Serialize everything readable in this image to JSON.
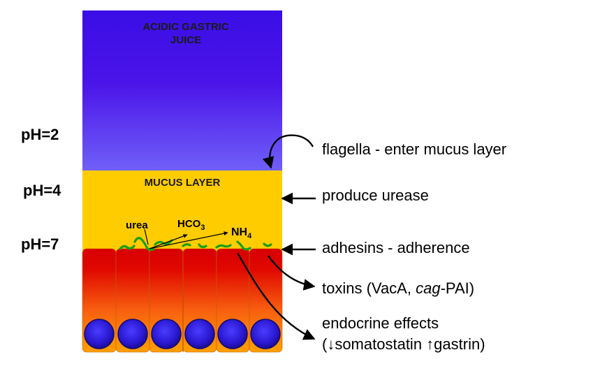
{
  "ph_labels": [
    "pH=2",
    "pH=4",
    "pH=7"
  ],
  "layers": {
    "gastric": [
      "ACIDIC GASTRIC",
      "JUICE"
    ],
    "mucus": "MUCUS LAYER"
  },
  "chemistry": {
    "urea": "urea",
    "hco3": {
      "base": "HCO",
      "sub": "3"
    },
    "nh4": {
      "base": "NH",
      "sub": "4"
    }
  },
  "annotations": {
    "flagella": "flagella - enter mucus layer",
    "urease": "produce urease",
    "adhesins": "adhesins - adherence",
    "toxins_pre": "toxins (VacA, ",
    "toxins_italic": "cag",
    "toxins_post": "-PAI)",
    "endocrine_line1": "endocrine effects",
    "endocrine_line2": "(↓somatostatin  ↑gastrin)"
  },
  "colors": {
    "gastric_top": "#3a0ee6",
    "gastric_bottom": "#6b5cf7",
    "mucus": "#ffcc00",
    "cell_top": "#d90000",
    "cell_bottom": "#ff9900",
    "nucleus": "#2a1bd6",
    "bacteria": "#1a9e1a"
  }
}
